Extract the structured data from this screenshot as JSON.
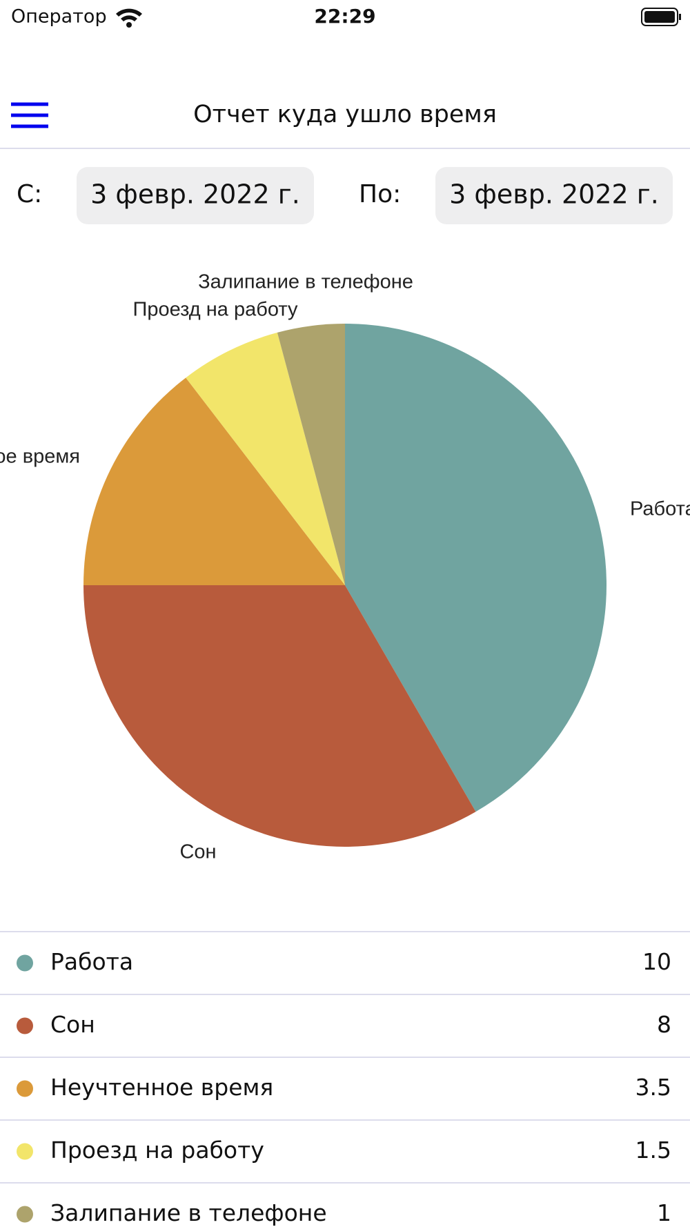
{
  "status_bar": {
    "carrier": "Оператор",
    "time": "22:29"
  },
  "nav": {
    "title": "Отчет куда ушло время"
  },
  "date_range": {
    "from_label": "С:",
    "from_date": "3 февр. 2022 г.",
    "to_label": "По:",
    "to_date": "3 февр. 2022 г."
  },
  "chart_data": {
    "type": "pie",
    "categories": [
      "Работа",
      "Сон",
      "Неучтенное время",
      "Проезд на работу",
      "Залипание в телефоне"
    ],
    "values": [
      10,
      8,
      3.5,
      1.5,
      1
    ],
    "colors": [
      "#70a4a0",
      "#b85b3c",
      "#db9a3a",
      "#f2e56a",
      "#ada36c"
    ]
  }
}
